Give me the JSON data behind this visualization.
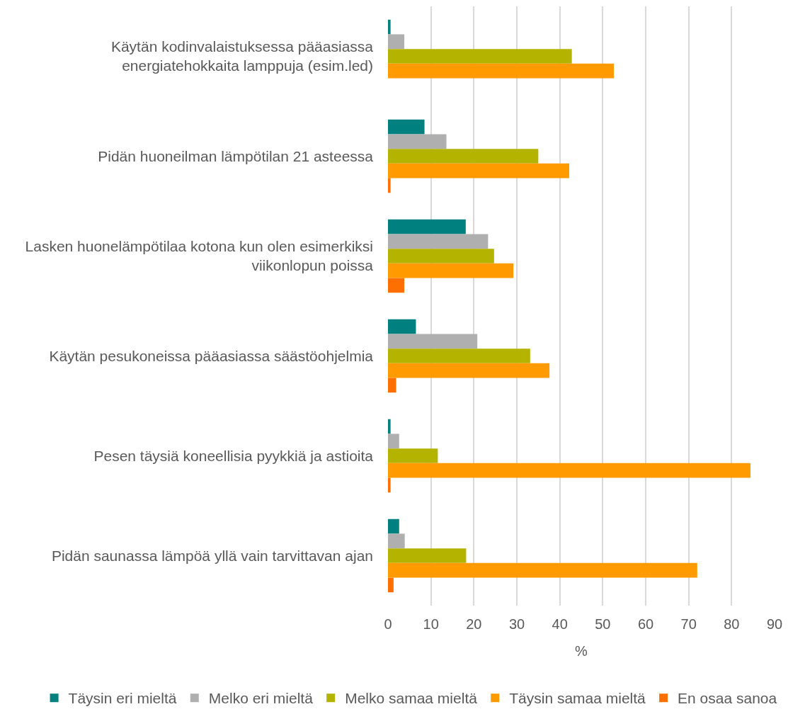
{
  "chart_data": {
    "type": "bar",
    "orientation": "horizontal",
    "categories": [
      "Käytän kodinvalaistuksessa pääasiassa energiatehokkaita lamppuja (esim.led)",
      "Pidän huoneilman lämpötilan 21 asteessa",
      "Lasken huonelämpötilaa kotona kun olen esimerkiksi viikonlopun poissa",
      "Käytän pesukoneissa pääasiassa säästöohjelmia",
      "Pesen täysiä koneellisia pyykkiä ja astioita",
      "Pidän saunassa lämpöä yllä vain tarvittavan ajan"
    ],
    "series": [
      {
        "name": "Täysin eri mieltä",
        "color": "#00807f",
        "values": [
          0.6,
          8.5,
          18.1,
          6.5,
          0.6,
          2.6
        ]
      },
      {
        "name": "Melko eri mieltä",
        "color": "#afafaf",
        "values": [
          3.8,
          13.6,
          23.3,
          20.8,
          2.6,
          3.9
        ]
      },
      {
        "name": "Melko samaa mieltä",
        "color": "#b3b300",
        "values": [
          42.8,
          35.0,
          24.7,
          33.1,
          11.6,
          18.2
        ]
      },
      {
        "name": "Täysin samaa mieltä",
        "color": "#ff9a00",
        "values": [
          52.6,
          42.2,
          29.2,
          37.6,
          84.4,
          72.0
        ]
      },
      {
        "name": "En osaa sanoa",
        "color": "#ff6f00",
        "values": [
          null,
          0.6,
          3.8,
          1.9,
          0.6,
          1.3
        ]
      }
    ],
    "xlabel": "%",
    "xlim": [
      0,
      90
    ],
    "xticks": [
      0,
      10,
      20,
      30,
      40,
      50,
      60,
      70,
      80,
      90
    ],
    "grid": "x",
    "legend": "bottom"
  }
}
